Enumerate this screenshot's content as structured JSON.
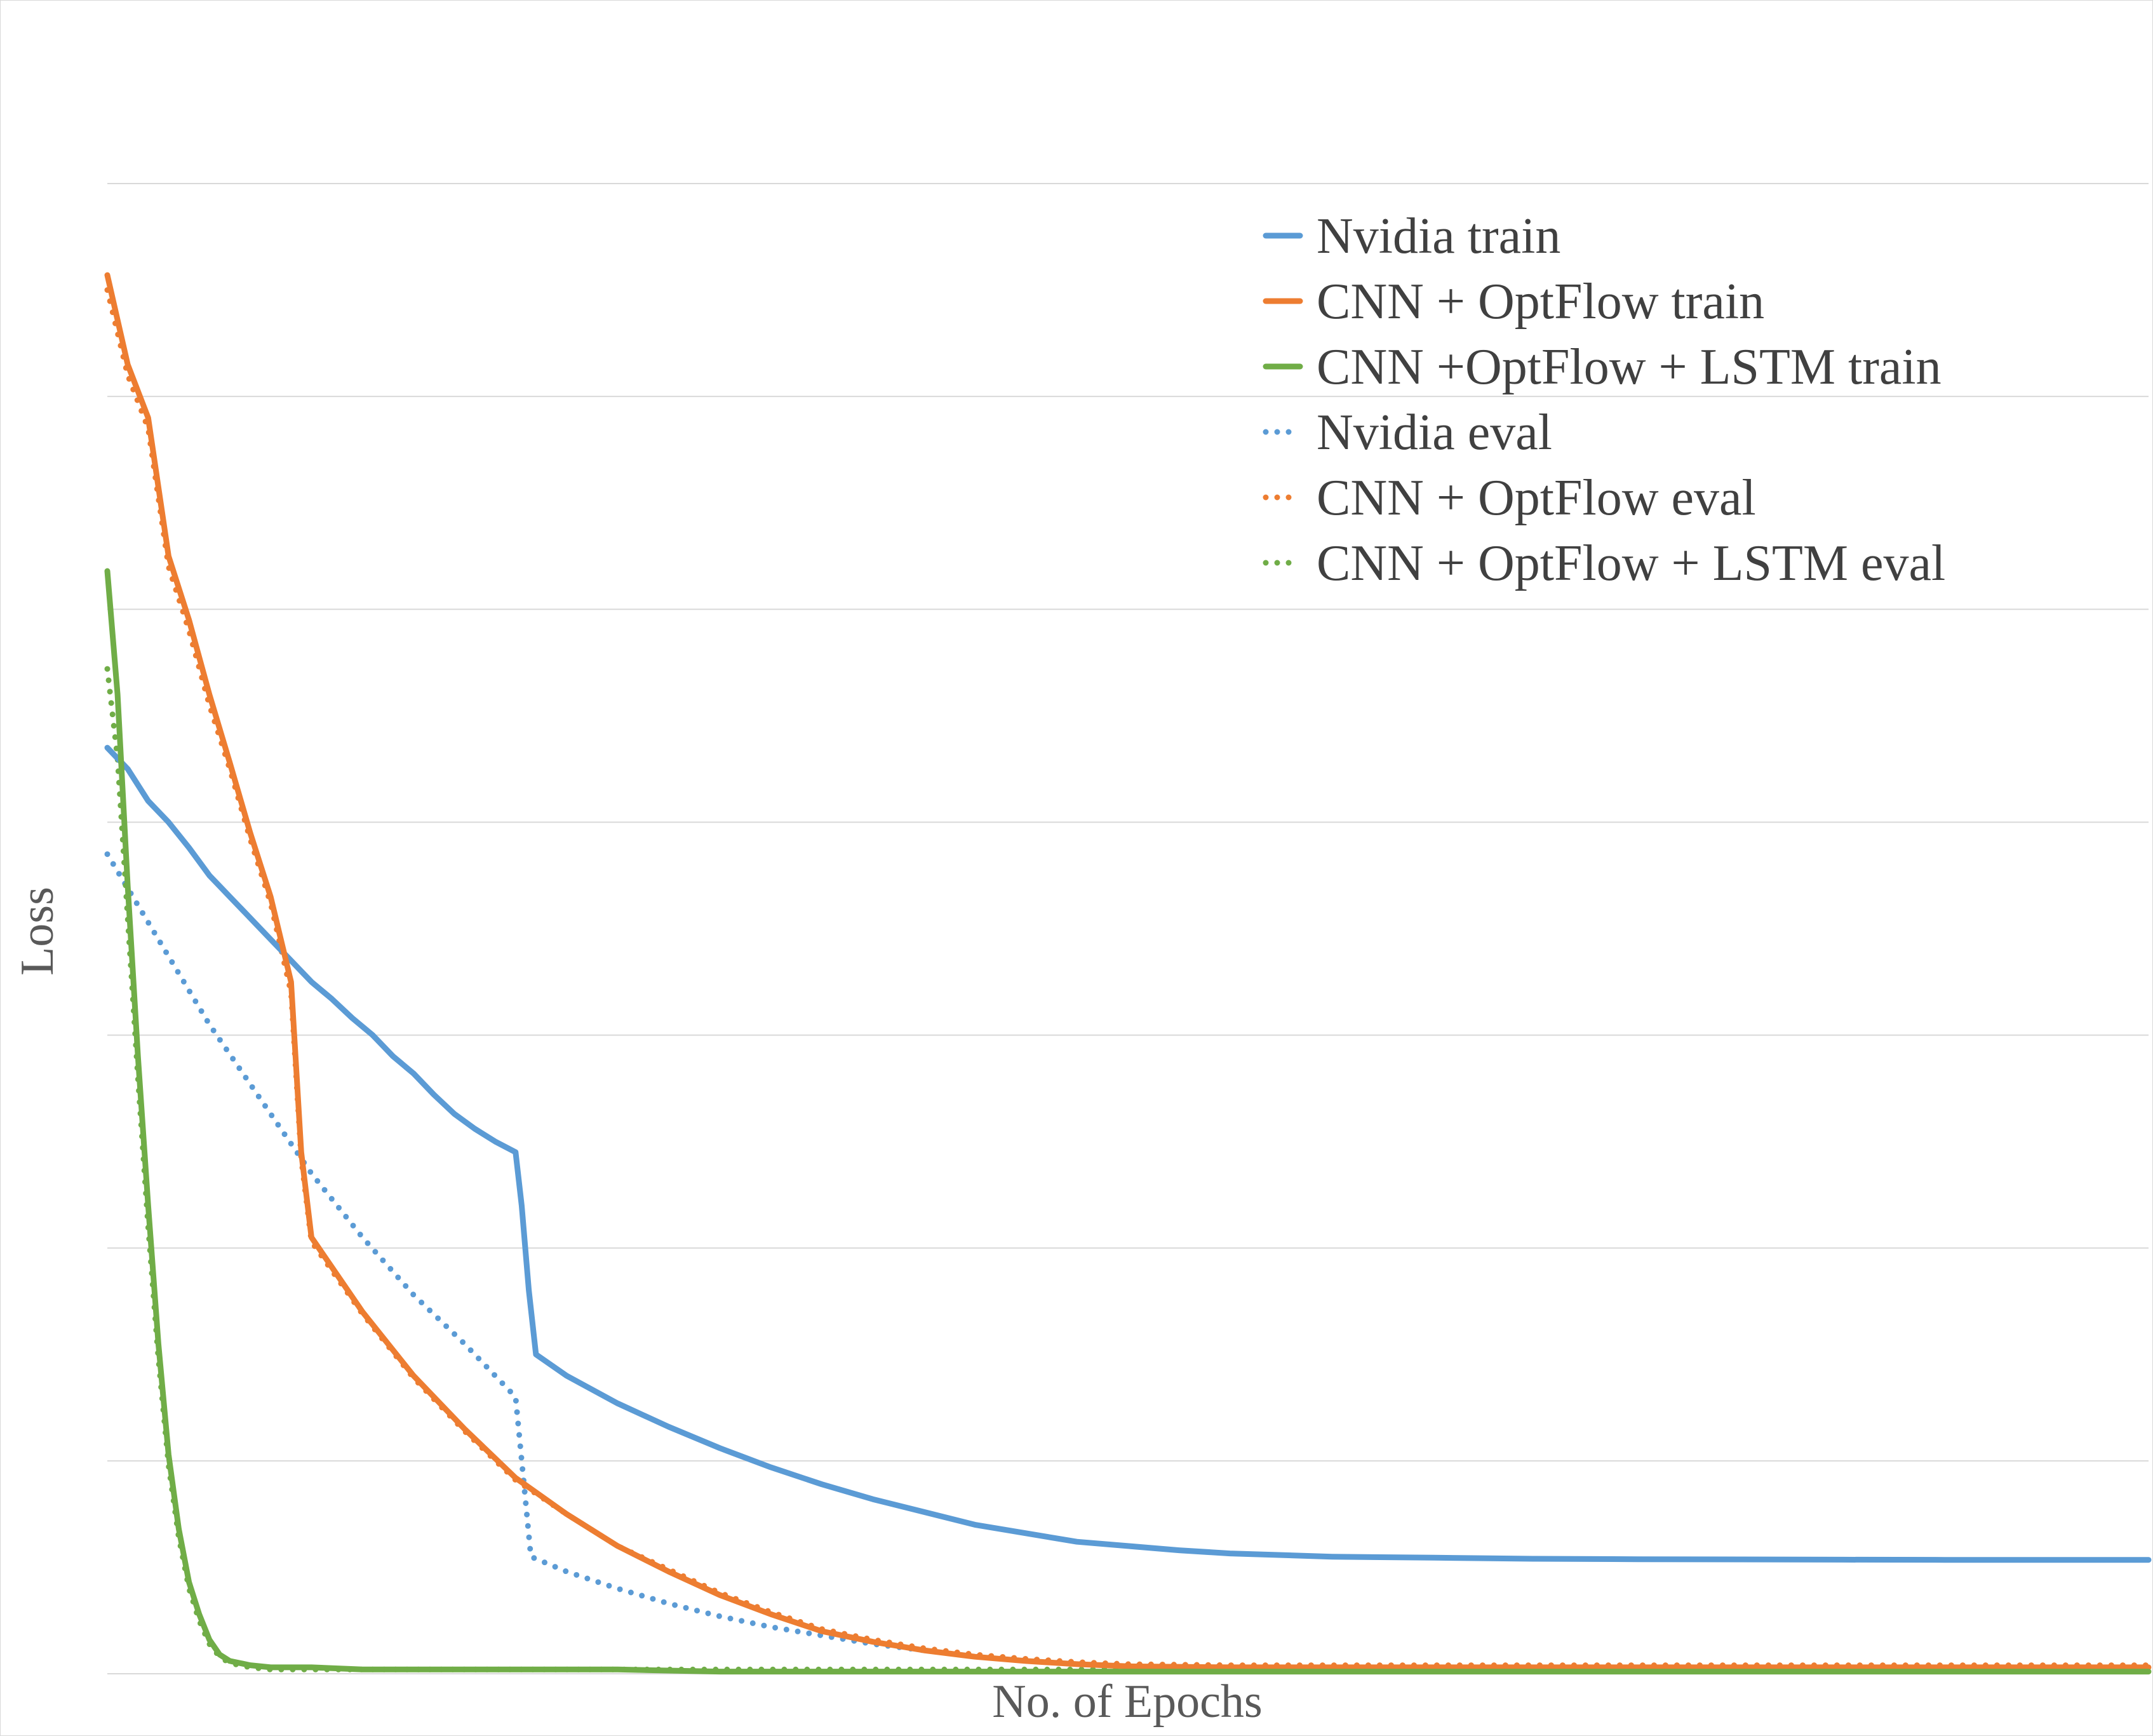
{
  "chart_data": {
    "type": "line",
    "title": "",
    "xlabel": "No. of Epochs",
    "ylabel": "Loss",
    "xlim": [
      0,
      200
    ],
    "ylim": [
      0,
      7
    ],
    "x_tick_labels_shown": false,
    "y_tick_labels_shown": false,
    "grid": true,
    "legend_position": "top-right",
    "series": [
      {
        "name": "Nvidia train",
        "color": "#5b9bd5",
        "dash": "solid",
        "points": [
          [
            0,
            4.35
          ],
          [
            2,
            4.25
          ],
          [
            4,
            4.1
          ],
          [
            6,
            4.0
          ],
          [
            8,
            3.88
          ],
          [
            10,
            3.75
          ],
          [
            12,
            3.65
          ],
          [
            14,
            3.55
          ],
          [
            16,
            3.45
          ],
          [
            18,
            3.35
          ],
          [
            20,
            3.25
          ],
          [
            22,
            3.17
          ],
          [
            24,
            3.08
          ],
          [
            26,
            3.0
          ],
          [
            28,
            2.9
          ],
          [
            30,
            2.82
          ],
          [
            32,
            2.72
          ],
          [
            34,
            2.63
          ],
          [
            36,
            2.56
          ],
          [
            38,
            2.5
          ],
          [
            40,
            2.45
          ],
          [
            40.6,
            2.2
          ],
          [
            41.3,
            1.8
          ],
          [
            42,
            1.5
          ],
          [
            45,
            1.4
          ],
          [
            50,
            1.27
          ],
          [
            55,
            1.16
          ],
          [
            60,
            1.06
          ],
          [
            65,
            0.97
          ],
          [
            70,
            0.89
          ],
          [
            75,
            0.82
          ],
          [
            80,
            0.76
          ],
          [
            85,
            0.7
          ],
          [
            90,
            0.66
          ],
          [
            95,
            0.62
          ],
          [
            100,
            0.6
          ],
          [
            105,
            0.58
          ],
          [
            110,
            0.565
          ],
          [
            120,
            0.55
          ],
          [
            130,
            0.545
          ],
          [
            140,
            0.54
          ],
          [
            150,
            0.538
          ],
          [
            160,
            0.537
          ],
          [
            170,
            0.536
          ],
          [
            180,
            0.535
          ],
          [
            190,
            0.535
          ],
          [
            200,
            0.535
          ]
        ]
      },
      {
        "name": "CNN + OptFlow train",
        "color": "#ed7d31",
        "dash": "solid",
        "points": [
          [
            0,
            6.57
          ],
          [
            2,
            6.15
          ],
          [
            4,
            5.9
          ],
          [
            6,
            5.25
          ],
          [
            8,
            4.95
          ],
          [
            10,
            4.6
          ],
          [
            12,
            4.28
          ],
          [
            14,
            3.95
          ],
          [
            16,
            3.65
          ],
          [
            18,
            3.25
          ],
          [
            19,
            2.45
          ],
          [
            20,
            2.05
          ],
          [
            25,
            1.7
          ],
          [
            30,
            1.4
          ],
          [
            35,
            1.15
          ],
          [
            40,
            0.92
          ],
          [
            45,
            0.75
          ],
          [
            50,
            0.6
          ],
          [
            55,
            0.48
          ],
          [
            60,
            0.37
          ],
          [
            65,
            0.28
          ],
          [
            70,
            0.2
          ],
          [
            75,
            0.15
          ],
          [
            80,
            0.11
          ],
          [
            85,
            0.08
          ],
          [
            90,
            0.06
          ],
          [
            95,
            0.045
          ],
          [
            100,
            0.035
          ],
          [
            110,
            0.03
          ],
          [
            120,
            0.03
          ],
          [
            140,
            0.03
          ],
          [
            160,
            0.03
          ],
          [
            180,
            0.03
          ],
          [
            200,
            0.03
          ]
        ]
      },
      {
        "name": "CNN +OptFlow + LSTM train",
        "color": "#70ad47",
        "dash": "solid",
        "points": [
          [
            0,
            5.18
          ],
          [
            1,
            4.6
          ],
          [
            2,
            3.7
          ],
          [
            3,
            2.9
          ],
          [
            4,
            2.2
          ],
          [
            5,
            1.55
          ],
          [
            6,
            1.03
          ],
          [
            7,
            0.68
          ],
          [
            8,
            0.43
          ],
          [
            9,
            0.28
          ],
          [
            10,
            0.16
          ],
          [
            11,
            0.09
          ],
          [
            12,
            0.06
          ],
          [
            14,
            0.04
          ],
          [
            16,
            0.03
          ],
          [
            20,
            0.03
          ],
          [
            25,
            0.02
          ],
          [
            30,
            0.02
          ],
          [
            40,
            0.02
          ],
          [
            50,
            0.02
          ],
          [
            60,
            0.01
          ],
          [
            80,
            0.01
          ],
          [
            100,
            0.01
          ],
          [
            120,
            0.01
          ],
          [
            140,
            0.01
          ],
          [
            160,
            0.01
          ],
          [
            180,
            0.01
          ],
          [
            200,
            0.01
          ]
        ]
      },
      {
        "name": "Nvidia eval",
        "color": "#5b9bd5",
        "dash": "dotted",
        "points": [
          [
            0,
            3.85
          ],
          [
            5,
            3.45
          ],
          [
            10,
            3.05
          ],
          [
            15,
            2.7
          ],
          [
            20,
            2.35
          ],
          [
            25,
            2.05
          ],
          [
            30,
            1.78
          ],
          [
            35,
            1.55
          ],
          [
            40,
            1.3
          ],
          [
            40.8,
            0.9
          ],
          [
            41.5,
            0.55
          ],
          [
            45,
            0.48
          ],
          [
            50,
            0.4
          ],
          [
            55,
            0.33
          ],
          [
            60,
            0.27
          ],
          [
            65,
            0.22
          ],
          [
            70,
            0.18
          ],
          [
            75,
            0.14
          ],
          [
            80,
            0.11
          ],
          [
            85,
            0.085
          ],
          [
            90,
            0.065
          ],
          [
            95,
            0.05
          ],
          [
            100,
            0.04
          ],
          [
            110,
            0.035
          ],
          [
            120,
            0.03
          ],
          [
            140,
            0.03
          ],
          [
            160,
            0.03
          ],
          [
            180,
            0.03
          ],
          [
            200,
            0.03
          ]
        ]
      },
      {
        "name": "CNN + OptFlow eval",
        "color": "#ed7d31",
        "dash": "dotted",
        "points": [
          [
            0,
            6.5
          ],
          [
            2,
            6.1
          ],
          [
            4,
            5.85
          ],
          [
            6,
            5.2
          ],
          [
            8,
            4.9
          ],
          [
            10,
            4.55
          ],
          [
            12,
            4.25
          ],
          [
            14,
            3.92
          ],
          [
            16,
            3.62
          ],
          [
            18,
            3.2
          ],
          [
            19,
            2.42
          ],
          [
            20,
            2.03
          ],
          [
            25,
            1.69
          ],
          [
            30,
            1.39
          ],
          [
            35,
            1.14
          ],
          [
            40,
            0.91
          ],
          [
            45,
            0.75
          ],
          [
            50,
            0.6
          ],
          [
            55,
            0.49
          ],
          [
            60,
            0.38
          ],
          [
            65,
            0.29
          ],
          [
            70,
            0.21
          ],
          [
            75,
            0.16
          ],
          [
            80,
            0.12
          ],
          [
            85,
            0.09
          ],
          [
            90,
            0.07
          ],
          [
            95,
            0.055
          ],
          [
            100,
            0.045
          ],
          [
            110,
            0.04
          ],
          [
            120,
            0.04
          ],
          [
            140,
            0.04
          ],
          [
            160,
            0.04
          ],
          [
            180,
            0.04
          ],
          [
            200,
            0.04
          ]
        ]
      },
      {
        "name": "CNN + OptFlow + LSTM eval",
        "color": "#70ad47",
        "dash": "dotted",
        "points": [
          [
            0,
            4.72
          ],
          [
            1,
            4.3
          ],
          [
            2,
            3.55
          ],
          [
            3,
            2.8
          ],
          [
            4,
            2.1
          ],
          [
            5,
            1.48
          ],
          [
            6,
            0.98
          ],
          [
            7,
            0.64
          ],
          [
            8,
            0.4
          ],
          [
            9,
            0.25
          ],
          [
            10,
            0.14
          ],
          [
            11,
            0.08
          ],
          [
            12,
            0.05
          ],
          [
            14,
            0.03
          ],
          [
            16,
            0.02
          ],
          [
            20,
            0.02
          ],
          [
            30,
            0.02
          ],
          [
            40,
            0.02
          ],
          [
            60,
            0.02
          ],
          [
            80,
            0.02
          ],
          [
            100,
            0.02
          ],
          [
            120,
            0.02
          ],
          [
            140,
            0.02
          ],
          [
            160,
            0.02
          ],
          [
            180,
            0.02
          ],
          [
            200,
            0.02
          ]
        ]
      }
    ]
  }
}
